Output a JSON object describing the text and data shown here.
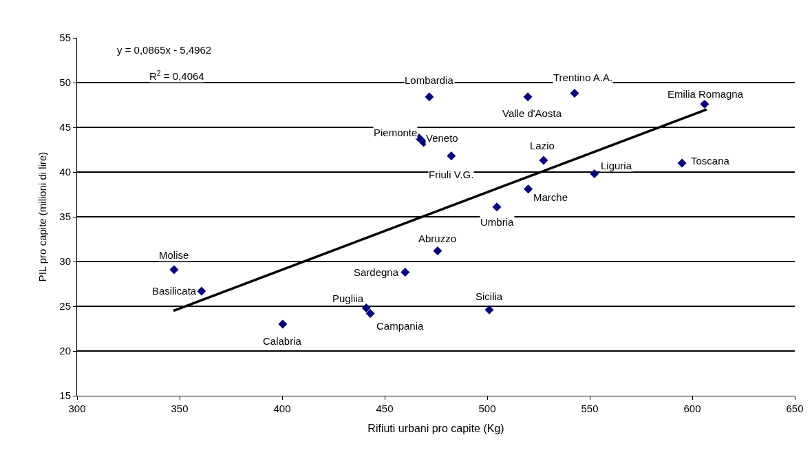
{
  "chart_data": {
    "type": "scatter",
    "xlabel": "Rifiuti urbani pro capite (Kg)",
    "ylabel": "PIL pro capite (milioni di lire)",
    "xlim": [
      300,
      650
    ],
    "xticks": [
      300,
      350,
      400,
      450,
      500,
      550,
      600,
      650
    ],
    "ylim": [
      15,
      55
    ],
    "yticks": [
      15,
      20,
      25,
      30,
      35,
      40,
      45,
      50,
      55
    ],
    "grid": "y",
    "marker": "diamond",
    "series": [
      {
        "color": "#000080",
        "x": [
          347.3,
          360.7,
          400.3,
          441,
          443,
          460,
          475.8,
          501,
          504.7,
          466.8,
          469,
          482.5,
          471.8,
          519.8,
          542.6,
          606,
          527.5,
          552.3,
          595,
          520
        ],
        "values": [
          29.1,
          26.7,
          23,
          24.8,
          24.2,
          28.8,
          31.2,
          24.6,
          36.1,
          43.8,
          43.3,
          41.8,
          48.4,
          48.4,
          48.8,
          47.6,
          41.3,
          39.8,
          41,
          38.1
        ]
      },
      {
        "type": "line",
        "color": "#000000",
        "marker": "none",
        "x": [
          347,
          607
        ],
        "values": [
          24.5,
          47.0
        ]
      }
    ],
    "annotations": [
      "y = 0,0865x - 5,4962",
      "R$^{2}$ = 0,4064",
      {
        "text": "Molise",
        "x": 347.3,
        "y": 29.1
      },
      {
        "text": "Basilicata",
        "x": 360.7,
        "y": 26.7
      },
      {
        "text": "Calabria",
        "x": 400.3,
        "y": 23
      },
      {
        "text": "Pugliia",
        "x": 441,
        "y": 24.8
      },
      {
        "text": "Campania",
        "x": 443,
        "y": 24.2
      },
      {
        "text": "Sardegna",
        "x": 460,
        "y": 28.8
      },
      {
        "text": "Abruzzo",
        "x": 475.8,
        "y": 31.2
      },
      {
        "text": "Sicilia",
        "x": 501,
        "y": 24.6
      },
      {
        "text": "Umbria",
        "x": 504.7,
        "y": 36.1
      },
      {
        "text": "Piemonte",
        "x": 466.8,
        "y": 43.8
      },
      {
        "text": "Veneto",
        "x": 469,
        "y": 43.3
      },
      {
        "text": "Friuli V.G.",
        "x": 482.5,
        "y": 41.8
      },
      {
        "text": "Lombardia",
        "x": 471.8,
        "y": 48.4
      },
      {
        "text": "Valle d'Aosta",
        "x": 519.8,
        "y": 48.4
      },
      {
        "text": "Trentino A.A.",
        "x": 542.6,
        "y": 48.8
      },
      {
        "text": "Emilia Romagna",
        "x": 606,
        "y": 47.6
      },
      {
        "text": "Lazio",
        "x": 527.5,
        "y": 41.3
      },
      {
        "text": "Liguria",
        "x": 552.3,
        "y": 39.8
      },
      {
        "text": "Toscana",
        "x": 595,
        "y": 41
      },
      {
        "text": "Marche",
        "x": 520,
        "y": 38.1
      }
    ]
  }
}
